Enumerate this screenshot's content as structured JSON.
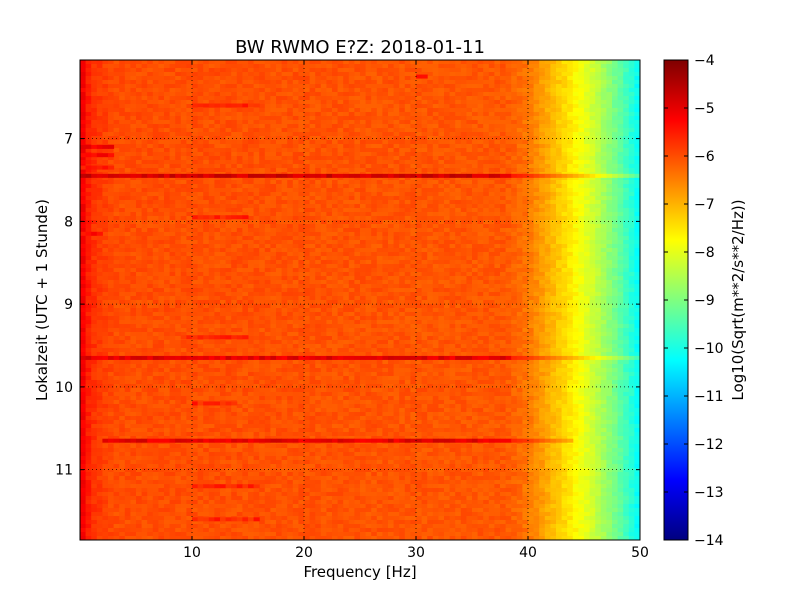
{
  "chart_data": {
    "type": "heatmap",
    "title": "BW RWMO E?Z: 2018-01-11",
    "xlabel": "Frequency [Hz]",
    "ylabel": "Lokalzeit (UTC + 1 Stunde)",
    "xlim": [
      0,
      50
    ],
    "ylim": [
      11.85,
      6.05
    ],
    "x_ticks": [
      10,
      20,
      30,
      40,
      50
    ],
    "y_ticks": [
      7,
      8,
      9,
      10,
      11
    ],
    "y_inverted": true,
    "grid": true,
    "grid_style": "dotted",
    "colormap": "jet",
    "colorbar": {
      "label": "Log10(Sqrt(m**2/s**2/Hz))",
      "range": [
        -14,
        -4
      ],
      "ticks": [
        -4,
        -5,
        -6,
        -7,
        -8,
        -9,
        -10,
        -11,
        -12,
        -13,
        -14
      ]
    },
    "background_level": -6.0,
    "frequency_profile": [
      {
        "freq": 0.0,
        "value": -5.0
      },
      {
        "freq": 1.0,
        "value": -5.7
      },
      {
        "freq": 3.0,
        "value": -6.0
      },
      {
        "freq": 38.0,
        "value": -6.1
      },
      {
        "freq": 40.0,
        "value": -6.4
      },
      {
        "freq": 42.0,
        "value": -7.0
      },
      {
        "freq": 44.0,
        "value": -7.6
      },
      {
        "freq": 46.0,
        "value": -8.3
      },
      {
        "freq": 48.0,
        "value": -9.2
      },
      {
        "freq": 49.5,
        "value": -10.0
      },
      {
        "freq": 50.0,
        "value": -10.3
      }
    ],
    "strong_bands": [
      {
        "time": 7.45,
        "freq_range": [
          0,
          50
        ],
        "value": -4.8
      },
      {
        "time": 9.65,
        "freq_range": [
          0,
          50
        ],
        "value": -5.0
      },
      {
        "time": 10.65,
        "freq_range": [
          2,
          44
        ],
        "value": -5.0
      }
    ],
    "weak_bands": [
      {
        "time": 7.1,
        "freq_range": [
          0,
          3
        ],
        "value": -5.2
      },
      {
        "time": 7.2,
        "freq_range": [
          0,
          3
        ],
        "value": -5.3
      },
      {
        "time": 7.35,
        "freq_range": [
          0,
          3
        ],
        "value": -5.5
      },
      {
        "time": 8.15,
        "freq_range": [
          0,
          2
        ],
        "value": -5.4
      },
      {
        "time": 6.25,
        "freq_range": [
          30,
          31
        ],
        "value": -5.3
      },
      {
        "time": 6.6,
        "freq_range": [
          10,
          16
        ],
        "value": -5.6
      },
      {
        "time": 7.95,
        "freq_range": [
          10,
          15
        ],
        "value": -5.6
      },
      {
        "time": 9.4,
        "freq_range": [
          9,
          15
        ],
        "value": -5.6
      },
      {
        "time": 10.2,
        "freq_range": [
          10,
          14
        ],
        "value": -5.6
      },
      {
        "time": 11.2,
        "freq_range": [
          10,
          16
        ],
        "value": -5.6
      },
      {
        "time": 11.6,
        "freq_range": [
          10,
          16
        ],
        "value": -5.6
      }
    ]
  }
}
